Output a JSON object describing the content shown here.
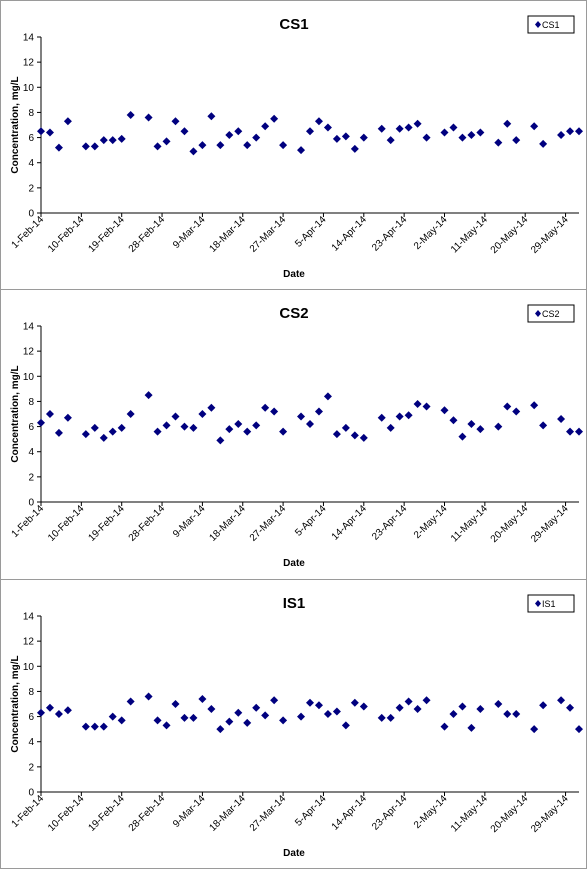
{
  "colors": {
    "marker": "#00007f",
    "axis": "#000000",
    "frame": "#9a9a9a"
  },
  "chart_data": [
    {
      "type": "scatter",
      "title": "CS1",
      "xlabel": "Date",
      "ylabel": "Concentration, mg/L",
      "ylim": [
        0,
        14
      ],
      "xlim": [
        "2014-02-01",
        "2014-06-01"
      ],
      "grid": false,
      "legend": "top-right",
      "yticks": [
        0,
        2,
        4,
        6,
        8,
        10,
        12,
        14
      ],
      "xticks": [
        {
          "date": "2014-02-01",
          "label": "1-Feb-14"
        },
        {
          "date": "2014-02-10",
          "label": "10-Feb-14"
        },
        {
          "date": "2014-02-19",
          "label": "19-Feb-14"
        },
        {
          "date": "2014-02-28",
          "label": "28-Feb-14"
        },
        {
          "date": "2014-03-09",
          "label": "9-Mar-14"
        },
        {
          "date": "2014-03-18",
          "label": "18-Mar-14"
        },
        {
          "date": "2014-03-27",
          "label": "27-Mar-14"
        },
        {
          "date": "2014-04-05",
          "label": "5-Apr-14"
        },
        {
          "date": "2014-04-14",
          "label": "14-Apr-14"
        },
        {
          "date": "2014-04-23",
          "label": "23-Apr-14"
        },
        {
          "date": "2014-05-02",
          "label": "2-May-14"
        },
        {
          "date": "2014-05-11",
          "label": "11-May-14"
        },
        {
          "date": "2014-05-20",
          "label": "20-May-14"
        },
        {
          "date": "2014-05-29",
          "label": "29-May-14"
        }
      ],
      "series": [
        {
          "name": "CS1",
          "x": [
            "2014-02-01",
            "2014-02-03",
            "2014-02-05",
            "2014-02-07",
            "2014-02-11",
            "2014-02-13",
            "2014-02-15",
            "2014-02-17",
            "2014-02-19",
            "2014-02-21",
            "2014-02-25",
            "2014-02-27",
            "2014-03-01",
            "2014-03-03",
            "2014-03-05",
            "2014-03-07",
            "2014-03-09",
            "2014-03-11",
            "2014-03-13",
            "2014-03-15",
            "2014-03-17",
            "2014-03-19",
            "2014-03-21",
            "2014-03-23",
            "2014-03-25",
            "2014-03-27",
            "2014-03-31",
            "2014-04-02",
            "2014-04-04",
            "2014-04-06",
            "2014-04-08",
            "2014-04-10",
            "2014-04-12",
            "2014-04-14",
            "2014-04-18",
            "2014-04-20",
            "2014-04-22",
            "2014-04-24",
            "2014-04-26",
            "2014-04-28",
            "2014-05-02",
            "2014-05-04",
            "2014-05-06",
            "2014-05-08",
            "2014-05-10",
            "2014-05-14",
            "2014-05-16",
            "2014-05-18",
            "2014-05-22",
            "2014-05-24",
            "2014-05-28",
            "2014-05-30",
            "2014-06-01"
          ],
          "y": [
            6.5,
            6.4,
            5.2,
            7.3,
            5.3,
            5.3,
            5.8,
            5.8,
            5.9,
            7.8,
            7.6,
            5.3,
            5.7,
            7.3,
            6.5,
            4.9,
            5.4,
            7.7,
            5.4,
            6.2,
            6.5,
            5.4,
            6.0,
            6.9,
            7.5,
            5.4,
            5.0,
            6.5,
            7.3,
            6.8,
            5.9,
            6.1,
            5.1,
            6.0,
            6.7,
            5.8,
            6.7,
            6.8,
            7.1,
            6.0,
            6.4,
            6.8,
            6.0,
            6.2,
            6.4,
            5.6,
            7.1,
            5.8,
            6.9,
            5.5,
            6.2,
            6.5,
            6.5
          ]
        }
      ]
    },
    {
      "type": "scatter",
      "title": "CS2",
      "xlabel": "Date",
      "ylabel": "Concentration, mg/L",
      "ylim": [
        0,
        14
      ],
      "xlim": [
        "2014-02-01",
        "2014-06-01"
      ],
      "grid": false,
      "legend": "top-right",
      "yticks": [
        0,
        2,
        4,
        6,
        8,
        10,
        12,
        14
      ],
      "xticks": [
        {
          "date": "2014-02-01",
          "label": "1-Feb-14"
        },
        {
          "date": "2014-02-10",
          "label": "10-Feb-14"
        },
        {
          "date": "2014-02-19",
          "label": "19-Feb-14"
        },
        {
          "date": "2014-02-28",
          "label": "28-Feb-14"
        },
        {
          "date": "2014-03-09",
          "label": "9-Mar-14"
        },
        {
          "date": "2014-03-18",
          "label": "18-Mar-14"
        },
        {
          "date": "2014-03-27",
          "label": "27-Mar-14"
        },
        {
          "date": "2014-04-05",
          "label": "5-Apr-14"
        },
        {
          "date": "2014-04-14",
          "label": "14-Apr-14"
        },
        {
          "date": "2014-04-23",
          "label": "23-Apr-14"
        },
        {
          "date": "2014-05-02",
          "label": "2-May-14"
        },
        {
          "date": "2014-05-11",
          "label": "11-May-14"
        },
        {
          "date": "2014-05-20",
          "label": "20-May-14"
        },
        {
          "date": "2014-05-29",
          "label": "29-May-14"
        }
      ],
      "series": [
        {
          "name": "CS2",
          "x": [
            "2014-02-01",
            "2014-02-03",
            "2014-02-05",
            "2014-02-07",
            "2014-02-11",
            "2014-02-13",
            "2014-02-15",
            "2014-02-17",
            "2014-02-19",
            "2014-02-21",
            "2014-02-25",
            "2014-02-27",
            "2014-03-01",
            "2014-03-03",
            "2014-03-05",
            "2014-03-07",
            "2014-03-09",
            "2014-03-11",
            "2014-03-13",
            "2014-03-15",
            "2014-03-17",
            "2014-03-19",
            "2014-03-21",
            "2014-03-23",
            "2014-03-25",
            "2014-03-27",
            "2014-03-31",
            "2014-04-02",
            "2014-04-04",
            "2014-04-06",
            "2014-04-08",
            "2014-04-10",
            "2014-04-12",
            "2014-04-14",
            "2014-04-18",
            "2014-04-20",
            "2014-04-22",
            "2014-04-24",
            "2014-04-26",
            "2014-04-28",
            "2014-05-02",
            "2014-05-04",
            "2014-05-06",
            "2014-05-08",
            "2014-05-10",
            "2014-05-14",
            "2014-05-16",
            "2014-05-18",
            "2014-05-22",
            "2014-05-24",
            "2014-05-28",
            "2014-05-30",
            "2014-06-01"
          ],
          "y": [
            6.3,
            7.0,
            5.5,
            6.7,
            5.4,
            5.9,
            5.1,
            5.6,
            5.9,
            7.0,
            8.5,
            5.6,
            6.1,
            6.8,
            6.0,
            5.9,
            7.0,
            7.5,
            4.9,
            5.8,
            6.2,
            5.6,
            6.1,
            7.5,
            7.2,
            5.6,
            6.8,
            6.2,
            7.2,
            8.4,
            5.4,
            5.9,
            5.3,
            5.1,
            6.7,
            5.9,
            6.8,
            6.9,
            7.8,
            7.6,
            7.3,
            6.5,
            5.2,
            6.2,
            5.8,
            6.0,
            7.6,
            7.2,
            7.7,
            6.1,
            6.6,
            5.6,
            5.6
          ]
        }
      ]
    },
    {
      "type": "scatter",
      "title": "IS1",
      "xlabel": "Date",
      "ylabel": "Concentration, mg/L",
      "ylim": [
        0,
        14
      ],
      "xlim": [
        "2014-02-01",
        "2014-06-01"
      ],
      "grid": false,
      "legend": "top-right",
      "yticks": [
        0,
        2,
        4,
        6,
        8,
        10,
        12,
        14
      ],
      "xticks": [
        {
          "date": "2014-02-01",
          "label": "1-Feb-14"
        },
        {
          "date": "2014-02-10",
          "label": "10-Feb-14"
        },
        {
          "date": "2014-02-19",
          "label": "19-Feb-14"
        },
        {
          "date": "2014-02-28",
          "label": "28-Feb-14"
        },
        {
          "date": "2014-03-09",
          "label": "9-Mar-14"
        },
        {
          "date": "2014-03-18",
          "label": "18-Mar-14"
        },
        {
          "date": "2014-03-27",
          "label": "27-Mar-14"
        },
        {
          "date": "2014-04-05",
          "label": "5-Apr-14"
        },
        {
          "date": "2014-04-14",
          "label": "14-Apr-14"
        },
        {
          "date": "2014-04-23",
          "label": "23-Apr-14"
        },
        {
          "date": "2014-05-02",
          "label": "2-May-14"
        },
        {
          "date": "2014-05-11",
          "label": "11-May-14"
        },
        {
          "date": "2014-05-20",
          "label": "20-May-14"
        },
        {
          "date": "2014-05-29",
          "label": "29-May-14"
        }
      ],
      "series": [
        {
          "name": "IS1",
          "x": [
            "2014-02-01",
            "2014-02-03",
            "2014-02-05",
            "2014-02-07",
            "2014-02-11",
            "2014-02-13",
            "2014-02-15",
            "2014-02-17",
            "2014-02-19",
            "2014-02-21",
            "2014-02-25",
            "2014-02-27",
            "2014-03-01",
            "2014-03-03",
            "2014-03-05",
            "2014-03-07",
            "2014-03-09",
            "2014-03-11",
            "2014-03-13",
            "2014-03-15",
            "2014-03-17",
            "2014-03-19",
            "2014-03-21",
            "2014-03-23",
            "2014-03-25",
            "2014-03-27",
            "2014-03-31",
            "2014-04-02",
            "2014-04-04",
            "2014-04-06",
            "2014-04-08",
            "2014-04-10",
            "2014-04-12",
            "2014-04-14",
            "2014-04-18",
            "2014-04-20",
            "2014-04-22",
            "2014-04-24",
            "2014-04-26",
            "2014-04-28",
            "2014-05-02",
            "2014-05-04",
            "2014-05-06",
            "2014-05-08",
            "2014-05-10",
            "2014-05-14",
            "2014-05-16",
            "2014-05-18",
            "2014-05-22",
            "2014-05-24",
            "2014-05-28",
            "2014-05-30",
            "2014-06-01"
          ],
          "y": [
            6.3,
            6.7,
            6.2,
            6.5,
            5.2,
            5.2,
            5.2,
            6.0,
            5.7,
            7.2,
            7.6,
            5.7,
            5.3,
            7.0,
            5.9,
            5.9,
            7.4,
            6.6,
            5.0,
            5.6,
            6.3,
            5.5,
            6.7,
            6.1,
            7.3,
            5.7,
            6.0,
            7.1,
            6.9,
            6.2,
            6.4,
            5.3,
            7.1,
            6.8,
            5.9,
            5.9,
            6.7,
            7.2,
            6.6,
            7.3,
            5.2,
            6.2,
            6.8,
            5.1,
            6.6,
            7.0,
            6.2,
            6.2,
            5.0,
            6.9,
            7.3,
            6.7,
            5.0
          ]
        }
      ]
    }
  ]
}
